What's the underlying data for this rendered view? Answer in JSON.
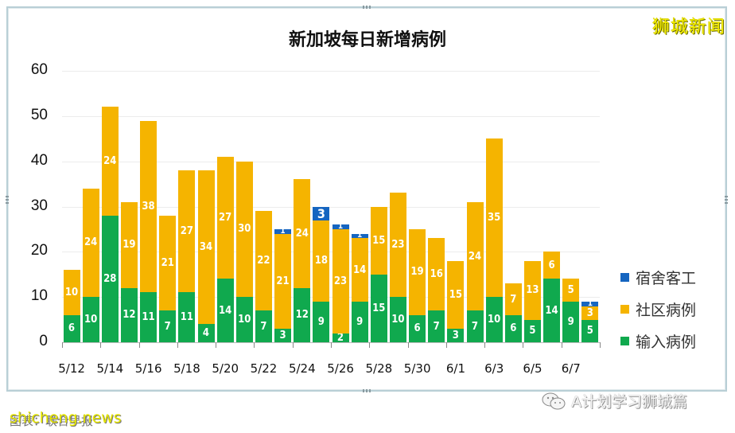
{
  "brand_watermark": "狮城新闻",
  "footer": {
    "left_watermark": "shicheng.news",
    "left_underlying_text": "图表：联合早报",
    "right_watermark": "A计划学习狮城篇"
  },
  "chart_data": {
    "type": "bar",
    "stacked": true,
    "title": "新加坡每日新增病例",
    "xlabel": "",
    "ylabel": "",
    "ylim": [
      0,
      60
    ],
    "yticks": [
      0,
      10,
      20,
      30,
      40,
      50,
      60
    ],
    "grid": true,
    "legend_position": "right",
    "categories": [
      "5/12",
      "5/13",
      "5/14",
      "5/15",
      "5/16",
      "5/17",
      "5/18",
      "5/19",
      "5/20",
      "5/21",
      "5/22",
      "5/23",
      "5/24",
      "5/25",
      "5/26",
      "5/27",
      "5/28",
      "5/29",
      "5/30",
      "5/31",
      "6/1",
      "6/2",
      "6/3",
      "6/4",
      "6/5",
      "6/6",
      "6/7",
      "6/8"
    ],
    "xtick_labels": [
      "5/12",
      "5/14",
      "5/16",
      "5/18",
      "5/20",
      "5/22",
      "5/24",
      "5/26",
      "5/28",
      "5/30",
      "6/1",
      "6/3",
      "6/5",
      "6/7"
    ],
    "series": [
      {
        "name": "输入病例",
        "color": "#10a94e",
        "values": [
          6,
          10,
          28,
          12,
          11,
          7,
          11,
          4,
          14,
          10,
          7,
          3,
          12,
          9,
          2,
          9,
          15,
          10,
          6,
          7,
          3,
          7,
          10,
          6,
          5,
          14,
          9,
          5
        ]
      },
      {
        "name": "社区病例",
        "color": "#f5b400",
        "values": [
          10,
          24,
          24,
          19,
          38,
          21,
          27,
          34,
          27,
          30,
          22,
          21,
          24,
          18,
          23,
          14,
          15,
          23,
          19,
          16,
          15,
          24,
          35,
          7,
          13,
          6,
          5,
          3
        ]
      },
      {
        "name": "宿舍客工",
        "color": "#1565c0",
        "values": [
          0,
          0,
          0,
          0,
          0,
          0,
          0,
          0,
          0,
          0,
          0,
          1,
          0,
          3,
          1,
          1,
          0,
          0,
          0,
          0,
          0,
          0,
          0,
          0,
          0,
          0,
          0,
          1
        ]
      }
    ],
    "legend": [
      "宿舍客工",
      "社区病例",
      "输入病例"
    ]
  }
}
